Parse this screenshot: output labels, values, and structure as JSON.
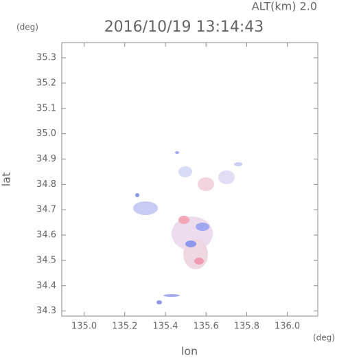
{
  "chart_data": {
    "type": "map",
    "title": "2016/10/19 13:14:43",
    "altitude_label": "ALT(km) 2.0",
    "y_unit": "(deg)",
    "x_unit": "(deg)",
    "xlabel": "lon",
    "ylabel": "lat",
    "xlim": [
      134.89,
      136.15
    ],
    "ylim": [
      34.28,
      35.36
    ],
    "xticks": [
      {
        "value": 135.0,
        "label": "135.0"
      },
      {
        "value": 135.2,
        "label": "135.2"
      },
      {
        "value": 135.4,
        "label": "135.4"
      },
      {
        "value": 135.6,
        "label": "135.6"
      },
      {
        "value": 135.8,
        "label": "135.8"
      },
      {
        "value": 136.0,
        "label": "136.0"
      }
    ],
    "yticks": [
      {
        "value": 34.3,
        "label": "34.3"
      },
      {
        "value": 34.4,
        "label": "34.4"
      },
      {
        "value": 34.5,
        "label": "34.5"
      },
      {
        "value": 34.6,
        "label": "34.6"
      },
      {
        "value": 34.7,
        "label": "34.7"
      },
      {
        "value": 34.8,
        "label": "34.8"
      },
      {
        "value": 34.9,
        "label": "34.9"
      },
      {
        "value": 35.0,
        "label": "35.0"
      },
      {
        "value": 35.1,
        "label": "35.1"
      },
      {
        "value": 35.2,
        "label": "35.2"
      },
      {
        "value": 35.3,
        "label": "35.3"
      }
    ]
  }
}
